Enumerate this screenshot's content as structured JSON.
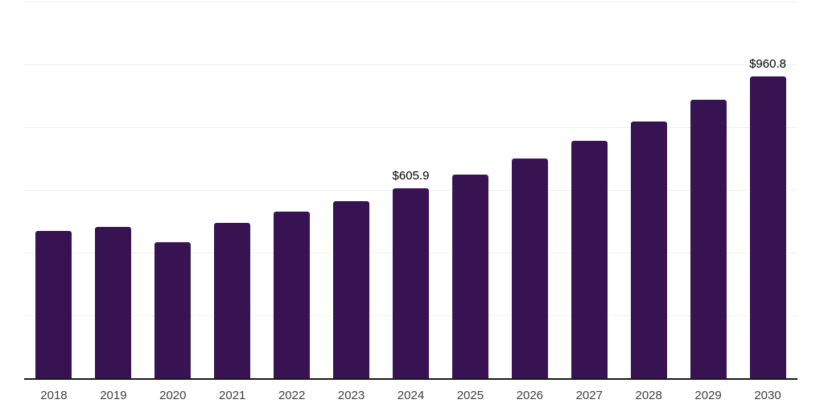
{
  "chart_data": {
    "type": "bar",
    "title": "",
    "xlabel": "",
    "ylabel": "",
    "categories": [
      "2018",
      "2019",
      "2020",
      "2021",
      "2022",
      "2023",
      "2024",
      "2025",
      "2026",
      "2027",
      "2028",
      "2029",
      "2030"
    ],
    "values": [
      470,
      482,
      433,
      496,
      531,
      565,
      605.9,
      649,
      701,
      757,
      818,
      887,
      960.8
    ],
    "data_labels": [
      {
        "category": "2024",
        "label": "$605.9"
      },
      {
        "category": "2030",
        "label": "$960.8"
      }
    ],
    "ylim": [
      0,
      1200
    ],
    "gridline_step": 200,
    "y_tick_labels_visible": false,
    "grid": "horizontal",
    "legend": "none",
    "bar_color": "#381351",
    "axis_line_color": "#1a1a1a",
    "gridline_color": "#f0f0f0",
    "data_label_color": "#000000",
    "tick_label_color": "#404040"
  }
}
